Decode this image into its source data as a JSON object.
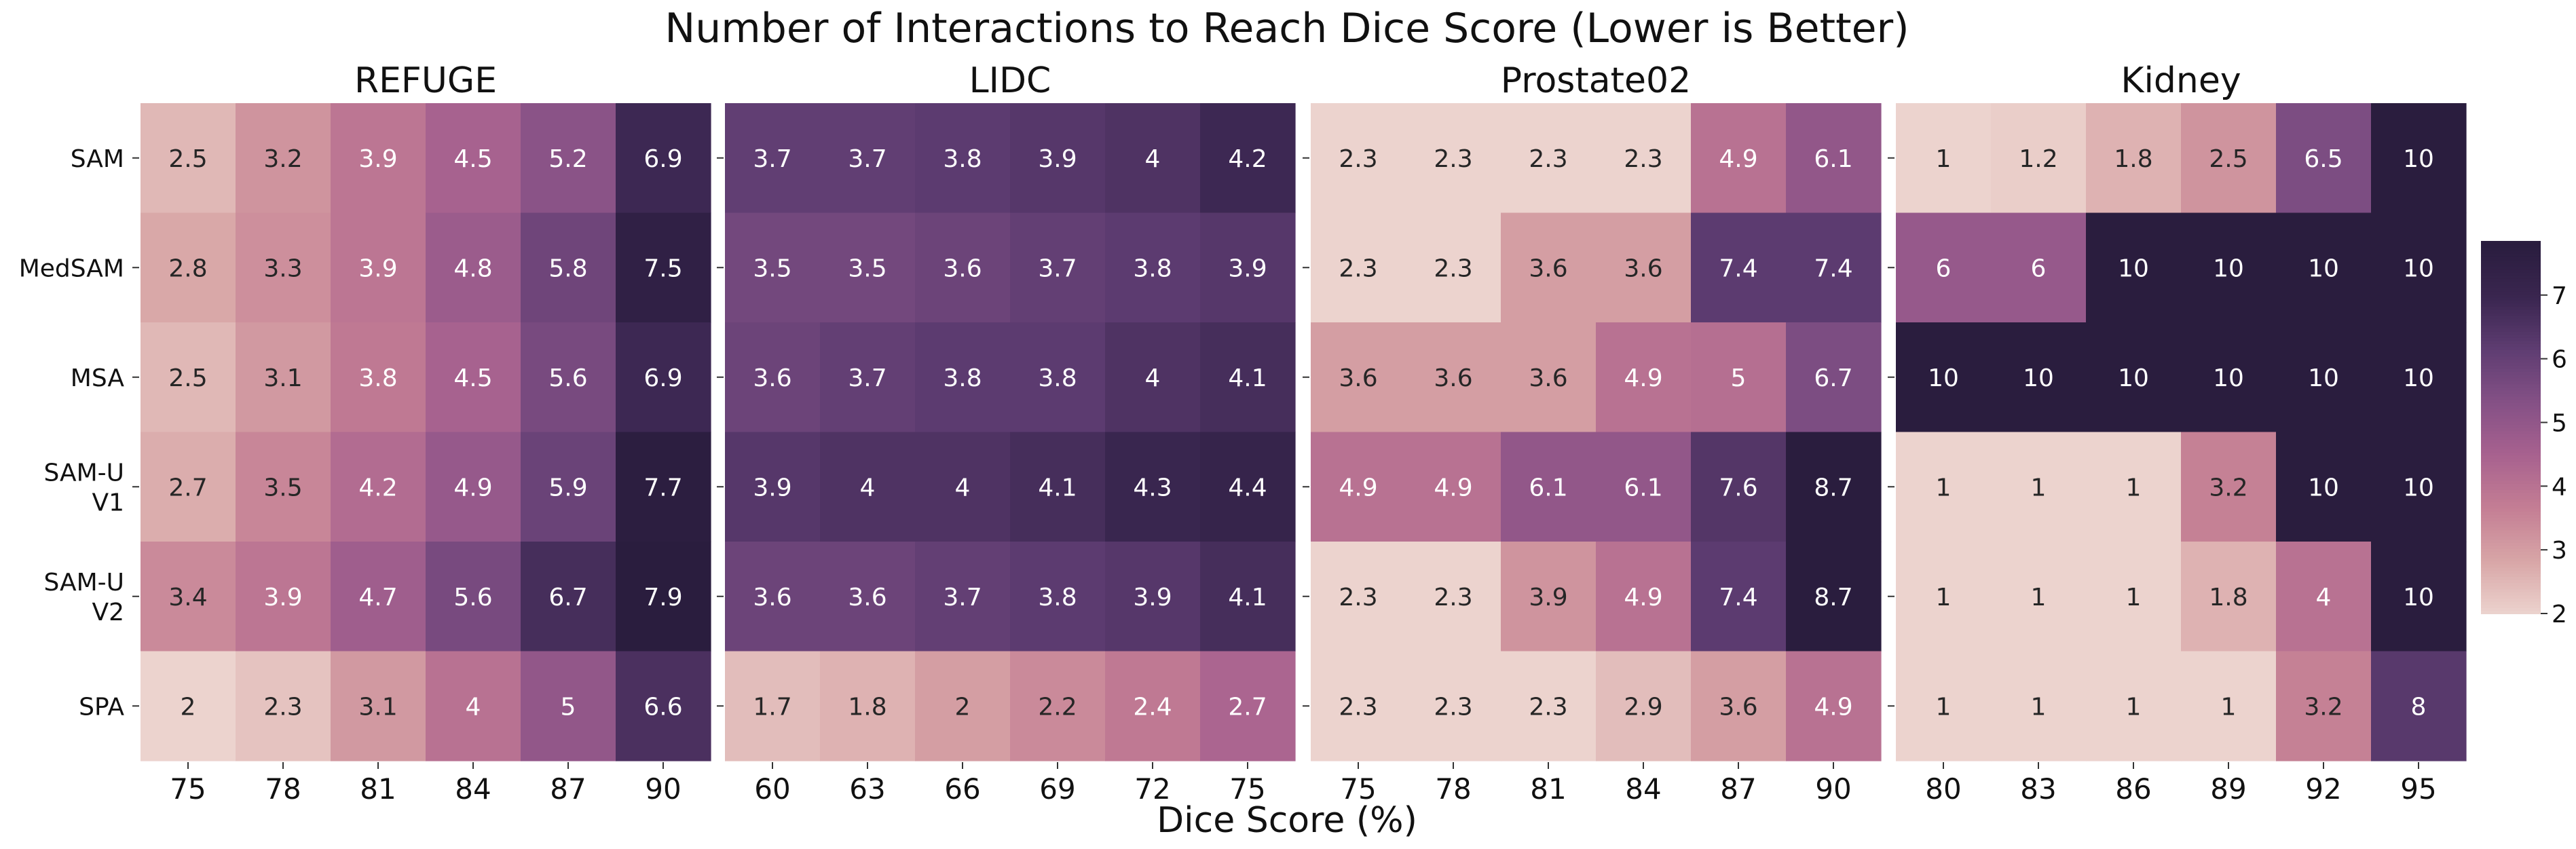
{
  "chart_data": {
    "type": "heatmap",
    "title": "Number of Interactions to Reach Dice Score (Lower is Better)",
    "xlabel": "Dice Score (%)",
    "ylabel": "",
    "grid": false,
    "colormap": {
      "name": "cubehelix light-to-dark (pink to dark purple)",
      "stops": [
        "#ecd3ce",
        "#d8a6a7",
        "#c47e94",
        "#a8628f",
        "#855186",
        "#5f3d72",
        "#3a2650",
        "#2a1d3e"
      ],
      "colorbar_range": [
        2,
        7
      ],
      "colorbar_ticks": [
        2,
        3,
        4,
        5,
        6,
        7
      ],
      "color_clip": [
        2.0,
        7.8
      ]
    },
    "row_labels": [
      [
        "SAM"
      ],
      [
        "MedSAM"
      ],
      [
        "MSA"
      ],
      [
        "SAM-U",
        "V1"
      ],
      [
        "SAM-U",
        "V2"
      ],
      [
        "SPA"
      ]
    ],
    "panels": [
      {
        "name": "REFUGE",
        "x": [
          "75",
          "78",
          "81",
          "84",
          "87",
          "90"
        ],
        "values": [
          [
            2.5,
            3.2,
            3.9,
            4.5,
            5.2,
            6.9
          ],
          [
            2.8,
            3.3,
            3.9,
            4.8,
            5.8,
            7.5
          ],
          [
            2.5,
            3.1,
            3.8,
            4.5,
            5.6,
            6.9
          ],
          [
            2.7,
            3.5,
            4.2,
            4.9,
            5.9,
            7.7
          ],
          [
            3.4,
            3.9,
            4.7,
            5.6,
            6.7,
            7.9
          ],
          [
            2,
            2.3,
            3.1,
            4,
            5,
            6.6
          ]
        ]
      },
      {
        "name": "LIDC",
        "x": [
          "60",
          "63",
          "66",
          "69",
          "72",
          "75"
        ],
        "values": [
          [
            3.7,
            3.7,
            3.8,
            3.9,
            4,
            4.2
          ],
          [
            3.5,
            3.5,
            3.6,
            3.7,
            3.8,
            3.9
          ],
          [
            3.6,
            3.7,
            3.8,
            3.8,
            4,
            4.1
          ],
          [
            3.9,
            4,
            4,
            4.1,
            4.3,
            4.4
          ],
          [
            3.6,
            3.6,
            3.7,
            3.8,
            3.9,
            4.1
          ],
          [
            1.7,
            1.8,
            2,
            2.2,
            2.4,
            2.7
          ]
        ],
        "color_values": [
          [
            6.1,
            6.1,
            6.2,
            6.35,
            6.5,
            6.9
          ],
          [
            5.7,
            5.7,
            5.85,
            6.05,
            6.2,
            6.35
          ],
          [
            5.85,
            6.05,
            6.2,
            6.2,
            6.5,
            6.7
          ],
          [
            6.35,
            6.5,
            6.5,
            6.7,
            7.0,
            7.2
          ],
          [
            5.85,
            5.85,
            6.05,
            6.2,
            6.35,
            6.7
          ],
          [
            2.4,
            2.6,
            3.0,
            3.4,
            3.8,
            4.4
          ]
        ]
      },
      {
        "name": "Prostate02",
        "x": [
          "75",
          "78",
          "81",
          "84",
          "87",
          "90"
        ],
        "values": [
          [
            2.3,
            2.3,
            2.3,
            2.3,
            4.9,
            6.1
          ],
          [
            2.3,
            2.3,
            3.6,
            3.6,
            7.4,
            7.4
          ],
          [
            3.6,
            3.6,
            3.6,
            4.9,
            5,
            6.7
          ],
          [
            4.9,
            4.9,
            6.1,
            6.1,
            7.6,
            8.7
          ],
          [
            2.3,
            2.3,
            3.9,
            4.9,
            7.4,
            8.7
          ],
          [
            2.3,
            2.3,
            2.3,
            2.9,
            3.6,
            4.9
          ]
        ],
        "color_values": [
          [
            2.0,
            2.0,
            2.0,
            2.0,
            4.0,
            5.0
          ],
          [
            2.0,
            2.0,
            3.0,
            3.0,
            6.2,
            6.2
          ],
          [
            3.0,
            3.0,
            3.0,
            4.0,
            4.1,
            5.5
          ],
          [
            4.0,
            4.0,
            5.0,
            5.0,
            6.4,
            7.8
          ],
          [
            2.0,
            2.0,
            3.2,
            4.0,
            6.2,
            7.8
          ],
          [
            2.0,
            2.0,
            2.0,
            2.4,
            3.0,
            4.0
          ]
        ]
      },
      {
        "name": "Kidney",
        "x": [
          "80",
          "83",
          "86",
          "89",
          "92",
          "95"
        ],
        "values": [
          [
            1,
            1.2,
            1.8,
            2.5,
            6.5,
            10
          ],
          [
            6,
            6,
            10,
            10,
            10,
            10
          ],
          [
            10,
            10,
            10,
            10,
            10,
            10
          ],
          [
            1,
            1,
            1,
            3.2,
            10,
            10
          ],
          [
            1,
            1,
            1,
            1.8,
            4,
            10
          ],
          [
            1,
            1,
            1,
            1,
            3.2,
            8
          ]
        ],
        "color_values": [
          [
            2.0,
            2.1,
            2.6,
            3.2,
            5.5,
            7.8
          ],
          [
            4.9,
            4.9,
            7.8,
            7.8,
            7.8,
            7.8
          ],
          [
            7.8,
            7.8,
            7.8,
            7.8,
            7.8,
            7.8
          ],
          [
            2.0,
            2.0,
            2.0,
            3.6,
            7.8,
            7.8
          ],
          [
            2.0,
            2.0,
            2.0,
            2.6,
            4.0,
            7.8
          ],
          [
            2.0,
            2.0,
            2.0,
            2.0,
            3.6,
            6.3
          ]
        ]
      }
    ]
  }
}
